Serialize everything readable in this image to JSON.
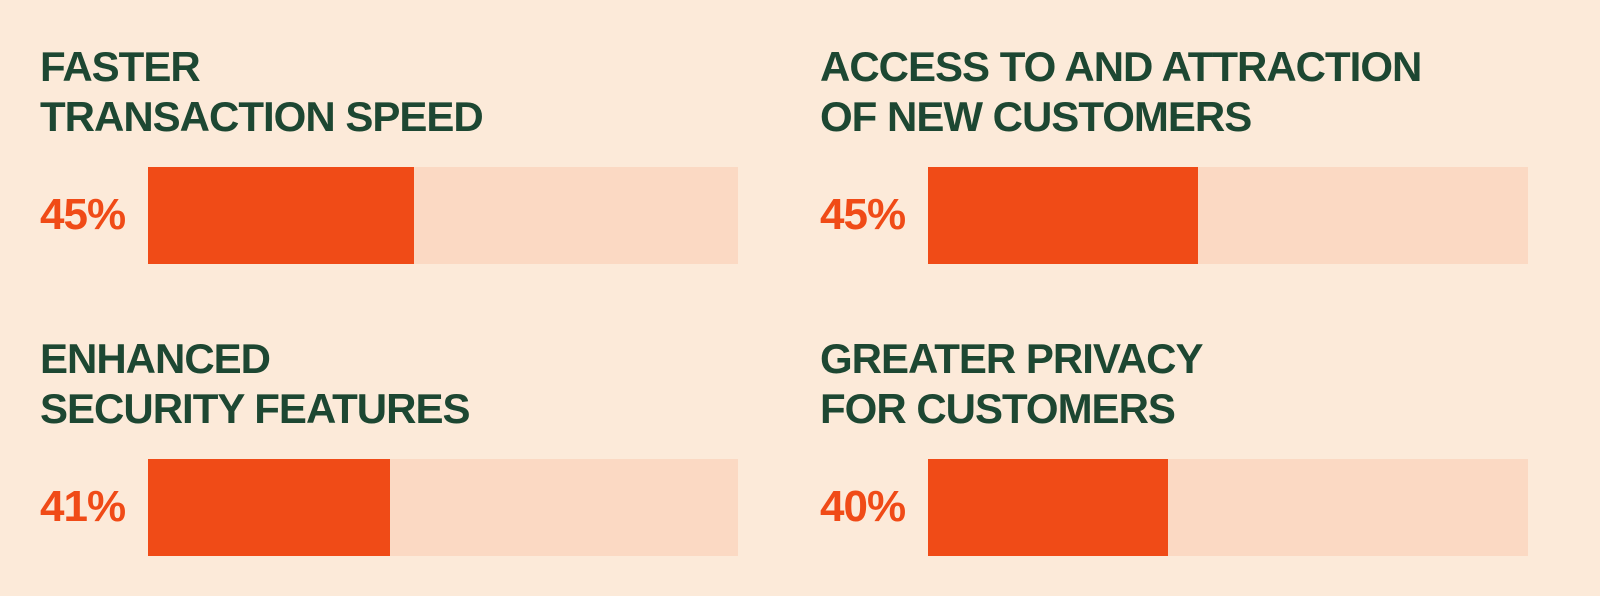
{
  "colors": {
    "background": "#fcead9",
    "bar_fill": "#f04b17",
    "bar_track": "#fbd9c3",
    "heading_text": "#1d4732",
    "value_text": "#f04b17"
  },
  "chart_data": {
    "type": "bar",
    "orientation": "horizontal",
    "unit": "%",
    "xlim": [
      0,
      100
    ],
    "grid": false,
    "legend": "none",
    "categories": [
      "Faster transaction speed",
      "Access to and attraction of new customers",
      "Enhanced security features",
      "Greater privacy for customers"
    ],
    "values": [
      45,
      45,
      41,
      40
    ],
    "value_labels": [
      "45%",
      "45%",
      "41%",
      "40%"
    ]
  },
  "panels": [
    {
      "title_lines": [
        "FASTER",
        "TRANSACTION SPEED"
      ],
      "value": 45,
      "value_label": "45%"
    },
    {
      "title_lines": [
        "ACCESS TO AND ATTRACTION",
        "OF NEW CUSTOMERS"
      ],
      "value": 45,
      "value_label": "45%"
    },
    {
      "title_lines": [
        "ENHANCED",
        "SECURITY FEATURES"
      ],
      "value": 41,
      "value_label": "41%"
    },
    {
      "title_lines": [
        "GREATER PRIVACY",
        "FOR CUSTOMERS"
      ],
      "value": 40,
      "value_label": "40%"
    }
  ]
}
